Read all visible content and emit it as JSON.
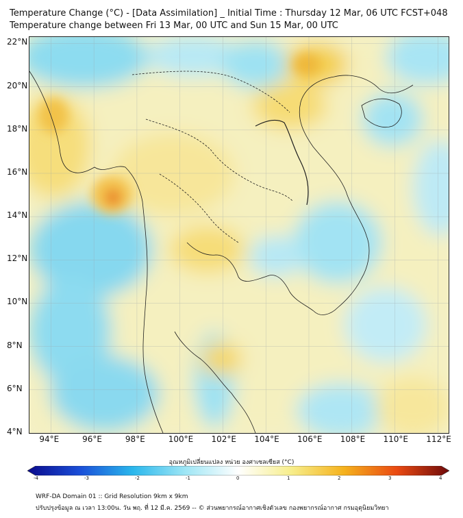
{
  "header": {
    "title_line1": "Temperature Change (°C) - [Data Assimilation] _ Initial Time : Thursday 12 Mar, 06 UTC FCST+048",
    "title_line2": "Temperature change between Fri 13 Mar, 00 UTC and Sun 15 Mar, 00 UTC"
  },
  "map": {
    "lat_labels": [
      "22°N",
      "20°N",
      "18°N",
      "16°N",
      "14°N",
      "12°N",
      "10°N",
      "8°N",
      "6°N",
      "4°N"
    ],
    "lon_labels": [
      "94°E",
      "96°E",
      "98°E",
      "100°E",
      "102°E",
      "104°E",
      "106°E",
      "108°E",
      "110°E",
      "112°E"
    ],
    "lat_values": [
      22,
      20,
      18,
      16,
      14,
      12,
      10,
      8,
      6,
      4
    ],
    "lon_values": [
      94,
      96,
      98,
      100,
      102,
      104,
      106,
      108,
      110,
      112
    ],
    "extent": {
      "lon_min": 93,
      "lon_max": 112.5,
      "lat_min": 4,
      "lat_max": 22.3
    },
    "gridlines": true,
    "field_name": "temperature change",
    "field_range": [
      -4,
      4
    ]
  },
  "colorbar": {
    "title": "อุณหภูมิเปลี่ยนแปลง หน่วย องศาเซลเซียส (°C)",
    "ticks": [
      "-4",
      "-3",
      "-2",
      "-1",
      "0",
      "1",
      "2",
      "3",
      "4"
    ],
    "tick_values": [
      -4,
      -3,
      -2,
      -1,
      0,
      1,
      2,
      3,
      4
    ],
    "colors": {
      "-4": "#0a0a8c",
      "-3": "#1a4fd8",
      "-2": "#2ab7ec",
      "-1": "#9fe6f5",
      "0": "#ffffff",
      "1": "#f7ee8c",
      "2": "#f5b21d",
      "3": "#ea4a12",
      "4": "#6e0a0a"
    }
  },
  "footer": {
    "line1": "WRF-DA Domain 01 :: Grid Resolution 9km x 9km",
    "line2": "ปรับปรุงข้อมูล ณ เวลา 13:00น. วัน พฤ. ที่ 12 มี.ค. 2569 -- © ส่วนพยากรณ์อากาศเชิงตัวเลข กองพยากรณ์อากาศ กรมอุตุนิยมวิทยา"
  }
}
